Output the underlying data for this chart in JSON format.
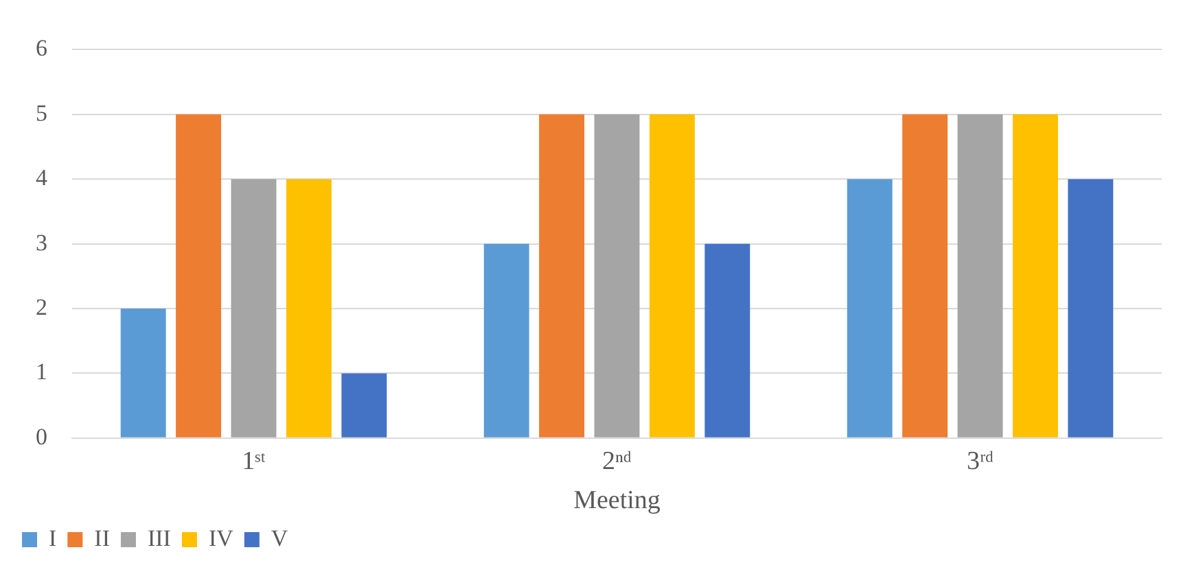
{
  "chart_data": {
    "type": "bar",
    "xlabel": "Meeting",
    "categories": [
      "1ˢᵗ",
      "2ⁿᵈ",
      "3ʳᵈ"
    ],
    "series": [
      {
        "name": "I",
        "color": "#5b9bd5",
        "values": [
          2,
          3,
          4
        ]
      },
      {
        "name": "II",
        "color": "#ed7d31",
        "values": [
          5,
          5,
          5
        ]
      },
      {
        "name": "III",
        "color": "#a5a5a5",
        "values": [
          4,
          5,
          5
        ]
      },
      {
        "name": "IV",
        "color": "#ffc000",
        "values": [
          4,
          5,
          5
        ]
      },
      {
        "name": "V",
        "color": "#4472c4",
        "values": [
          1,
          3,
          4
        ]
      }
    ],
    "ylim": [
      0,
      6
    ],
    "yticks": [
      0,
      1,
      2,
      3,
      4,
      5,
      6
    ],
    "grid": "y",
    "legend": "bottom left"
  }
}
